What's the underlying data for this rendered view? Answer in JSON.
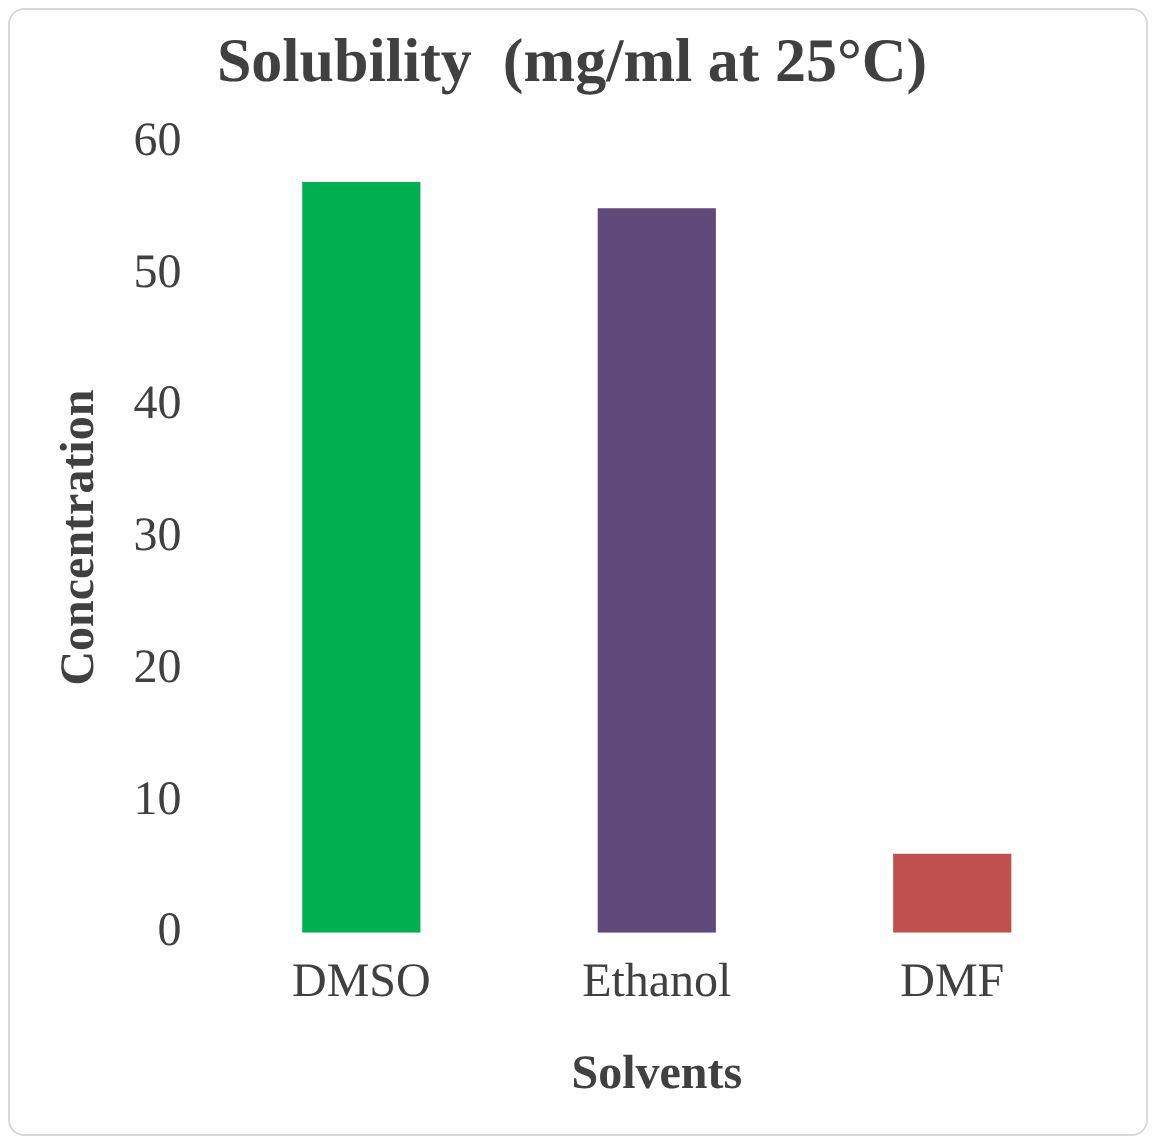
{
  "chart_data": {
    "type": "bar",
    "title": "Solubility  (mg/ml at 25°C)",
    "xlabel": "Solvents",
    "ylabel": "Concentration",
    "categories": [
      "DMSO",
      "Ethanol",
      "DMF"
    ],
    "values": [
      57,
      55,
      6
    ],
    "colors": [
      "#00b050",
      "#604a7b",
      "#c0504d"
    ],
    "ylim": [
      0,
      60
    ],
    "yticks": [
      0,
      10,
      20,
      30,
      40,
      50,
      60
    ],
    "grid": false,
    "legend": false
  }
}
